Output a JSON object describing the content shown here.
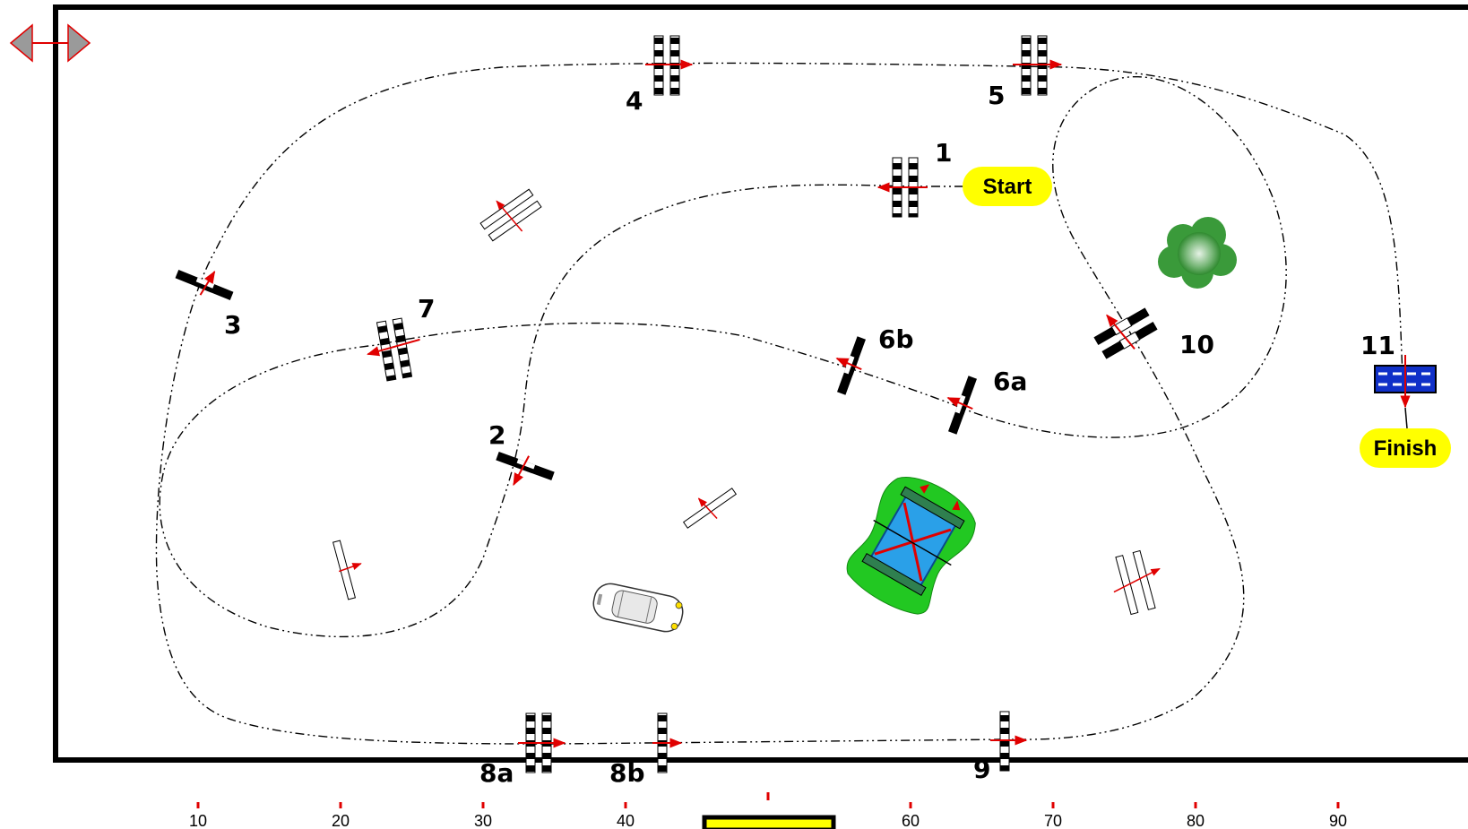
{
  "labels": {
    "start": "Start",
    "finish": "Finish"
  },
  "fences": [
    "1",
    "2",
    "3",
    "4",
    "5",
    "6a",
    "6b",
    "7",
    "8a",
    "8b",
    "9",
    "10",
    "11"
  ],
  "ruler": {
    "ticks": [
      "10",
      "20",
      "30",
      "40",
      "60",
      "70",
      "80",
      "90"
    ]
  },
  "icons": [
    "resize-arrow-icon",
    "tree-icon",
    "car-icon",
    "water-jump-icon"
  ],
  "colors": {
    "label_fill": "#ffff00",
    "arrow": "#e00000",
    "water": "#1e90ff",
    "grass": "#22c822",
    "tree": "#3a9a3a",
    "oxer_blue": "#1030c8"
  }
}
